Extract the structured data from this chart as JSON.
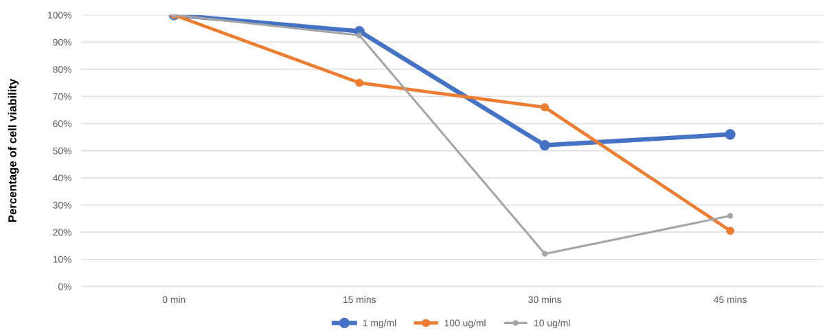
{
  "chart_data": {
    "type": "line",
    "ylabel": "Percentage of cell viability",
    "categories": [
      "0 min",
      "15 mins",
      "30 mins",
      "45 mins"
    ],
    "series": [
      {
        "name": "1 mg/ml",
        "color": "#4472c4",
        "values": [
          100,
          94,
          52,
          56
        ]
      },
      {
        "name": "100 ug/ml",
        "color": "#ed7d31",
        "values": [
          100,
          75,
          66,
          20.5
        ]
      },
      {
        "name": "10 ug/ml",
        "color": "#a5a5a5",
        "values": [
          100,
          92.5,
          12,
          26
        ]
      }
    ],
    "ylim": [
      0,
      100
    ],
    "yticks": [
      {
        "value": 0,
        "label": "0%"
      },
      {
        "value": 10,
        "label": "10%"
      },
      {
        "value": 20,
        "label": "20%"
      },
      {
        "value": 30,
        "label": "30%"
      },
      {
        "value": 40,
        "label": "40%"
      },
      {
        "value": 50,
        "label": "50%"
      },
      {
        "value": 60,
        "label": "60%"
      },
      {
        "value": 70,
        "label": "70%"
      },
      {
        "value": 80,
        "label": "80%"
      },
      {
        "value": 90,
        "label": "90%"
      },
      {
        "value": 100,
        "label": "100%"
      }
    ],
    "grid": "y",
    "legend": "bottom",
    "marker": "circle",
    "line_style": "solid"
  }
}
